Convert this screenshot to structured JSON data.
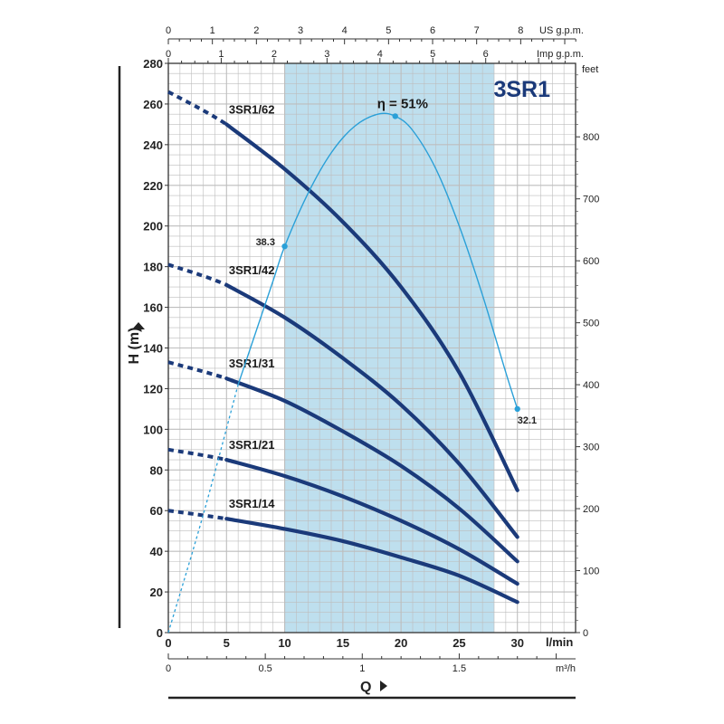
{
  "chart_data": {
    "type": "line",
    "title": "3SR1",
    "colors": {
      "curve": "#1b3a7a",
      "efficiency": "#2aa0d8",
      "band": "#a8d4e8",
      "grid": "#bdbdbd"
    },
    "xlabel": "Q",
    "ylabel": "H (m)",
    "x_unit": "l/min",
    "x_unit_m3h": "m³/h",
    "x_unit_us": "US g.p.m.",
    "x_unit_imp": "Imp g.p.m.",
    "y_unit_right": "feet",
    "xlim": [
      0,
      35
    ],
    "ylim": [
      0,
      280
    ],
    "x_ticks": [
      "0",
      "5",
      "10",
      "15",
      "20",
      "25",
      "30"
    ],
    "x_ticks_m3h": [
      "0",
      "0.5",
      "1",
      "1.5"
    ],
    "x_ticks_us": [
      "0",
      "1",
      "2",
      "3",
      "4",
      "5",
      "6",
      "7",
      "8"
    ],
    "x_ticks_imp": [
      "0",
      "1",
      "2",
      "3",
      "4",
      "5",
      "6"
    ],
    "y_ticks": [
      "0",
      "20",
      "40",
      "60",
      "80",
      "100",
      "120",
      "140",
      "160",
      "180",
      "200",
      "220",
      "240",
      "260",
      "280"
    ],
    "y_ticks_feet": [
      "0",
      "100",
      "200",
      "300",
      "400",
      "500",
      "600",
      "700",
      "800"
    ],
    "recommended_range": [
      10,
      28
    ],
    "grid": true,
    "series": [
      {
        "name": "3SR1/62",
        "dashed_x": [
          0,
          5
        ],
        "x": [
          0,
          5,
          10,
          15,
          20,
          25,
          30
        ],
        "y": [
          266,
          250,
          228,
          202,
          170,
          128,
          70
        ]
      },
      {
        "name": "3SR1/42",
        "dashed_x": [
          0,
          5
        ],
        "x": [
          0,
          5,
          10,
          15,
          20,
          25,
          30
        ],
        "y": [
          181,
          171,
          155,
          135,
          112,
          83,
          47
        ]
      },
      {
        "name": "3SR1/31",
        "dashed_x": [
          0,
          5
        ],
        "x": [
          0,
          5,
          10,
          15,
          20,
          25,
          30
        ],
        "y": [
          133,
          125,
          114,
          99,
          82,
          61,
          35
        ]
      },
      {
        "name": "3SR1/21",
        "dashed_x": [
          0,
          5
        ],
        "x": [
          0,
          5,
          10,
          15,
          20,
          25,
          30
        ],
        "y": [
          90,
          85,
          77,
          67,
          55,
          41,
          24
        ]
      },
      {
        "name": "3SR1/14",
        "dashed_x": [
          0,
          5
        ],
        "x": [
          0,
          5,
          10,
          15,
          20,
          25,
          30
        ],
        "y": [
          60,
          56,
          51,
          45,
          37,
          28,
          15
        ]
      }
    ],
    "efficiency": {
      "label": "η = 51%",
      "x": [
        0,
        3,
        6,
        9,
        10,
        12,
        14,
        16,
        18,
        19.5,
        21,
        23,
        25,
        27,
        29,
        30
      ],
      "y": [
        0,
        58,
        122,
        173,
        190,
        216,
        236,
        249,
        255,
        254,
        247,
        228,
        200,
        166,
        128,
        110
      ],
      "points": [
        {
          "x": 10,
          "y": 190,
          "label": "38.3"
        },
        {
          "x": 19.5,
          "y": 254,
          "label": ""
        },
        {
          "x": 30,
          "y": 110,
          "label": "32.1"
        }
      ]
    }
  }
}
